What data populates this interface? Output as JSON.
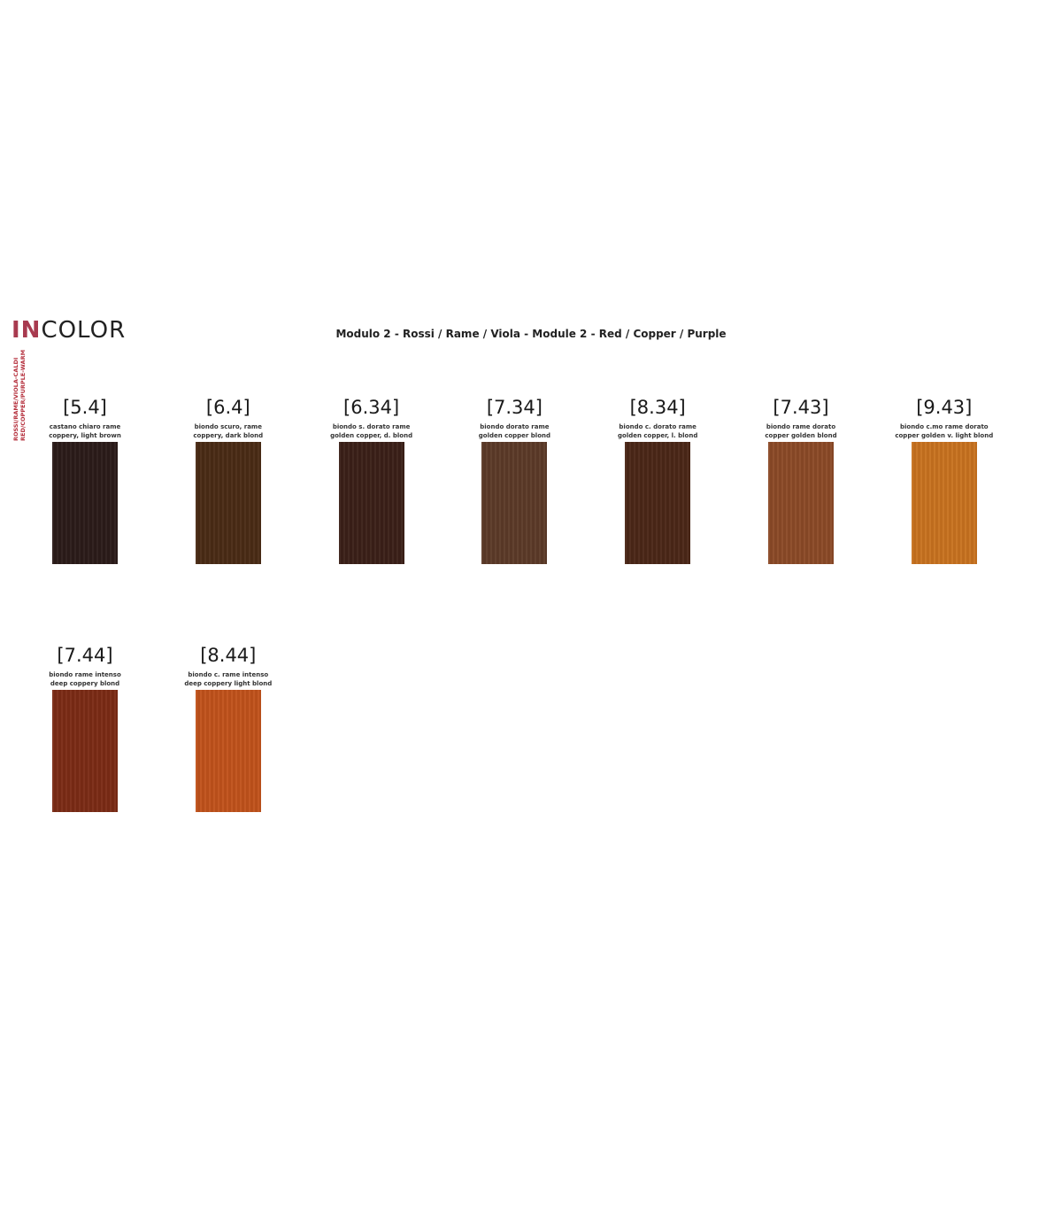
{
  "header": {
    "logo_accent": "IN",
    "logo_rest": "COLOR",
    "title": "Modulo 2 - Rossi / Rame / Viola - Module 2 - Red / Copper / Purple",
    "side_line1": "ROSSI/RAME/VIOLA-CALDI",
    "side_line2": "RED/COPPER/PURPLE-WARM",
    "accent_color": "#a83a4f"
  },
  "swatches": [
    {
      "code": "[5.4]",
      "it": "castano chiaro rame",
      "en": "coppery, light brown",
      "color": "#2b1b19"
    },
    {
      "code": "[6.4]",
      "it": "biondo scuro, rame",
      "en": "coppery, dark blond",
      "color": "#4a2b15"
    },
    {
      "code": "[6.34]",
      "it": "biondo s. dorato rame",
      "en": "golden copper, d. blond",
      "color": "#3b2018"
    },
    {
      "code": "[7.34]",
      "it": "biondo dorato rame",
      "en": "golden copper blond",
      "color": "#5c3a28"
    },
    {
      "code": "[8.34]",
      "it": "biondo c. dorato rame",
      "en": "golden copper, l. blond",
      "color": "#4b2717"
    },
    {
      "code": "[7.43]",
      "it": "biondo rame dorato",
      "en": "copper golden blond",
      "color": "#8b4a27"
    },
    {
      "code": "[9.43]",
      "it": "biondo c.mo rame dorato",
      "en": "copper golden v. light blond",
      "color": "#c8721f"
    },
    {
      "code": "[7.44]",
      "it": "biondo rame intenso",
      "en": "deep coppery blond",
      "color": "#7b2b15"
    },
    {
      "code": "[8.44]",
      "it": "biondo c. rame intenso",
      "en": "deep coppery light blond",
      "color": "#c1521b"
    }
  ]
}
